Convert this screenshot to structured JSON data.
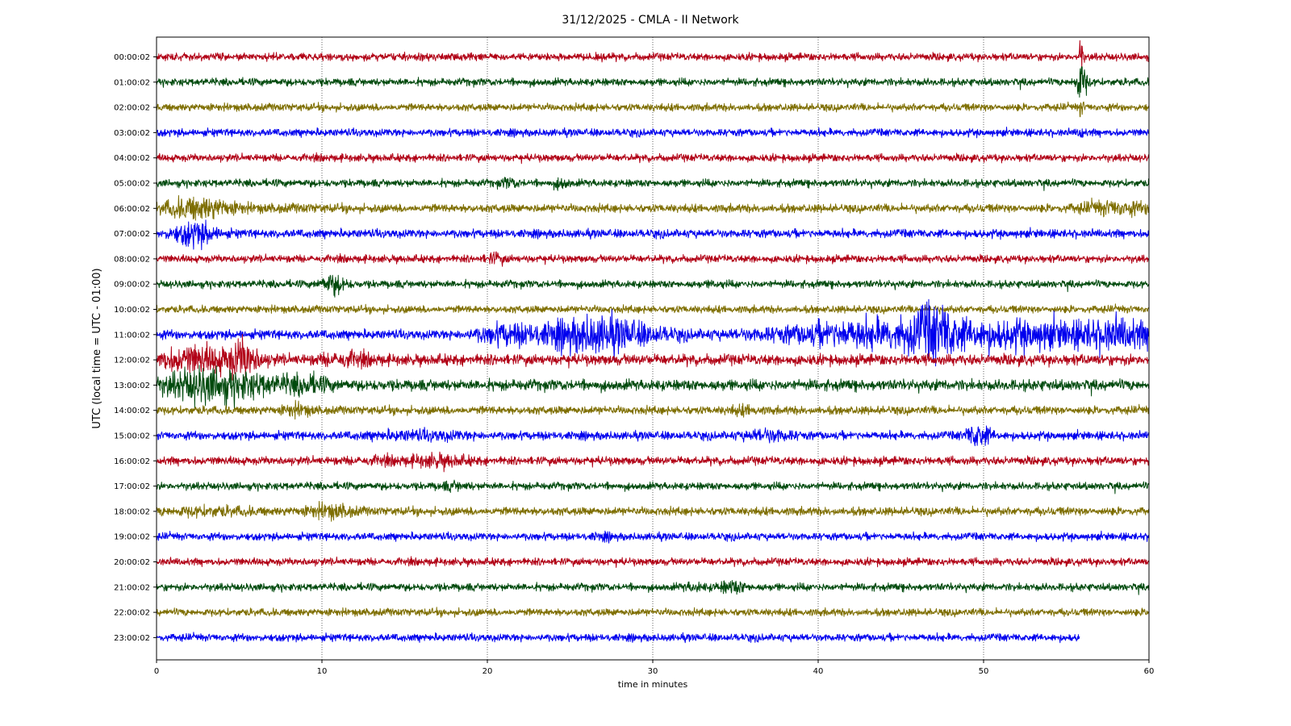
{
  "chart_data": {
    "type": "line",
    "title": "31/12/2025 - CMLA - II Network",
    "xlabel": "time in minutes",
    "ylabel": "UTC (local time = UTC - 01:00)",
    "xlim": [
      0,
      60
    ],
    "x_ticks": [
      "0",
      "10",
      "20",
      "30",
      "40",
      "50",
      "60"
    ],
    "grid": "vertical dotted at x ticks",
    "legend": "none",
    "colors": [
      "#b10015",
      "#004a0d",
      "#7e6e00",
      "#0000ee"
    ],
    "trace_labels": [
      "00:00:02",
      "01:00:02",
      "02:00:02",
      "03:00:02",
      "04:00:02",
      "05:00:02",
      "06:00:02",
      "07:00:02",
      "08:00:02",
      "09:00:02",
      "10:00:02",
      "11:00:02",
      "12:00:02",
      "13:00:02",
      "14:00:02",
      "15:00:02",
      "16:00:02",
      "17:00:02",
      "18:00:02",
      "19:00:02",
      "20:00:02",
      "21:00:02",
      "22:00:02",
      "23:00:02"
    ],
    "traces": [
      {
        "label": "00:00:02",
        "noise": 0.9,
        "end": 60,
        "events": [
          [
            55.9,
            7,
            0.08
          ]
        ]
      },
      {
        "label": "01:00:02",
        "noise": 0.9,
        "end": 60,
        "events": [
          [
            55.9,
            6,
            0.25
          ]
        ]
      },
      {
        "label": "02:00:02",
        "noise": 0.9,
        "end": 60,
        "events": [
          [
            55.9,
            3,
            0.1
          ]
        ]
      },
      {
        "label": "03:00:02",
        "noise": 0.9,
        "end": 60,
        "events": [
          [
            55.9,
            2.5,
            0.1
          ]
        ]
      },
      {
        "label": "04:00:02",
        "noise": 0.9,
        "end": 60,
        "events": []
      },
      {
        "label": "05:00:02",
        "noise": 0.9,
        "end": 60,
        "events": [
          [
            21.3,
            1.8,
            0.4
          ],
          [
            24.5,
            2,
            0.3
          ]
        ]
      },
      {
        "label": "06:00:02",
        "noise": 1.0,
        "end": 60,
        "events": [
          [
            2.5,
            3.2,
            1.5
          ],
          [
            8,
            1.2,
            2
          ],
          [
            58,
            2.2,
            1.5
          ]
        ]
      },
      {
        "label": "07:00:02",
        "noise": 1.0,
        "end": 60,
        "events": [
          [
            2.3,
            3.5,
            0.9
          ]
        ]
      },
      {
        "label": "08:00:02",
        "noise": 0.9,
        "end": 60,
        "events": [
          [
            20.5,
            2,
            0.4
          ]
        ]
      },
      {
        "label": "09:00:02",
        "noise": 0.9,
        "end": 60,
        "events": [
          [
            10.7,
            3.2,
            0.5
          ],
          [
            33.8,
            1.4,
            0.3
          ]
        ]
      },
      {
        "label": "10:00:02",
        "noise": 0.9,
        "end": 60,
        "events": []
      },
      {
        "label": "11:00:02",
        "noise": 1.1,
        "end": 60,
        "events": [
          [
            21,
            2.5,
            1.2
          ],
          [
            26.5,
            4.5,
            2.5
          ],
          [
            47,
            5,
            1
          ],
          [
            43,
            3.5,
            4
          ],
          [
            53,
            3.5,
            4
          ],
          [
            58.5,
            3,
            1.5
          ]
        ]
      },
      {
        "label": "12:00:02",
        "noise": 1.3,
        "end": 60,
        "events": [
          [
            2.5,
            3,
            2
          ],
          [
            5.2,
            3.5,
            0.6
          ],
          [
            11.5,
            1.8,
            1
          ]
        ]
      },
      {
        "label": "13:00:02",
        "noise": 1.3,
        "end": 60,
        "events": [
          [
            2.5,
            3.5,
            1.5
          ],
          [
            5.5,
            2.5,
            1.5
          ],
          [
            9,
            2.2,
            1
          ]
        ]
      },
      {
        "label": "14:00:02",
        "noise": 1.0,
        "end": 60,
        "events": [
          [
            8.5,
            2,
            0.6
          ],
          [
            35.5,
            1.6,
            0.6
          ]
        ]
      },
      {
        "label": "15:00:02",
        "noise": 1.0,
        "end": 60,
        "events": [
          [
            16,
            1.6,
            2
          ],
          [
            37,
            2,
            1
          ],
          [
            49.7,
            3.5,
            0.5
          ]
        ]
      },
      {
        "label": "16:00:02",
        "noise": 1.0,
        "end": 60,
        "events": [
          [
            17,
            2,
            1.2
          ],
          [
            13.5,
            1.4,
            1
          ]
        ]
      },
      {
        "label": "17:00:02",
        "noise": 0.9,
        "end": 60,
        "events": [
          [
            18,
            1.6,
            0.6
          ]
        ]
      },
      {
        "label": "18:00:02",
        "noise": 1.0,
        "end": 60,
        "events": [
          [
            3,
            1.6,
            2
          ],
          [
            10.5,
            2.2,
            1
          ]
        ]
      },
      {
        "label": "19:00:02",
        "noise": 0.9,
        "end": 60,
        "events": [
          [
            27,
            1.4,
            0.5
          ]
        ]
      },
      {
        "label": "20:00:02",
        "noise": 0.9,
        "end": 60,
        "events": []
      },
      {
        "label": "21:00:02",
        "noise": 0.9,
        "end": 60,
        "events": [
          [
            32.5,
            1.6,
            0.5
          ],
          [
            34.8,
            2.2,
            0.6
          ]
        ]
      },
      {
        "label": "22:00:02",
        "noise": 0.9,
        "end": 60,
        "events": []
      },
      {
        "label": "23:00:02",
        "noise": 0.9,
        "end": 55.8,
        "events": []
      }
    ]
  }
}
